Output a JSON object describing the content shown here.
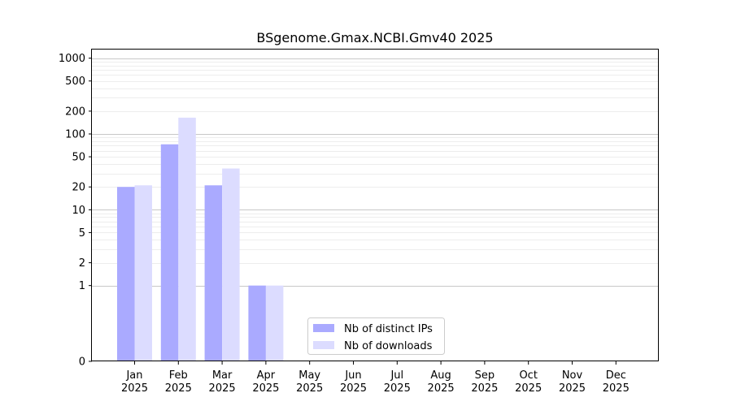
{
  "chart_data": {
    "type": "bar",
    "title": "BSgenome.Gmax.NCBI.Gmv40 2025",
    "xlabel": "",
    "ylabel": "",
    "categories": [
      {
        "month": "Jan",
        "year": "2025"
      },
      {
        "month": "Feb",
        "year": "2025"
      },
      {
        "month": "Mar",
        "year": "2025"
      },
      {
        "month": "Apr",
        "year": "2025"
      },
      {
        "month": "May",
        "year": "2025"
      },
      {
        "month": "Jun",
        "year": "2025"
      },
      {
        "month": "Jul",
        "year": "2025"
      },
      {
        "month": "Aug",
        "year": "2025"
      },
      {
        "month": "Sep",
        "year": "2025"
      },
      {
        "month": "Oct",
        "year": "2025"
      },
      {
        "month": "Nov",
        "year": "2025"
      },
      {
        "month": "Dec",
        "year": "2025"
      }
    ],
    "series": [
      {
        "name": "Nb of distinct IPs",
        "color": "#aaaaff",
        "values": [
          20,
          73,
          21,
          1,
          0,
          0,
          0,
          0,
          0,
          0,
          0,
          0
        ]
      },
      {
        "name": "Nb of downloads",
        "color": "#dcdcff",
        "values": [
          21,
          164,
          35,
          1,
          0,
          0,
          0,
          0,
          0,
          0,
          0,
          0
        ]
      }
    ],
    "yscale": "symlog",
    "ylim": [
      0,
      1300
    ],
    "yticks": [
      0,
      1,
      2,
      5,
      10,
      20,
      50,
      100,
      200,
      500,
      1000
    ],
    "grid": "horizontal",
    "legend": "bottom-center"
  }
}
